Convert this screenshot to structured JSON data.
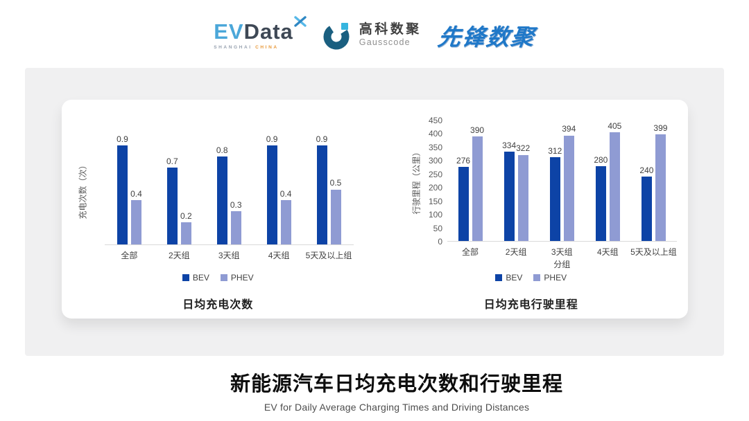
{
  "header": {
    "evdata": {
      "ev": "EV",
      "data": "Data",
      "sub_left": "SHANGHAI",
      "sub_right": "CHINA"
    },
    "gausscode": {
      "cn": "高科数聚",
      "en": "Gausscode"
    },
    "xianfeng": "先锋数聚"
  },
  "icons": {
    "evdata_mark": "x-sparkle",
    "gausscode_mark": "g-ring-with-square"
  },
  "chart_data": [
    {
      "type": "bar",
      "title": "日均充电次数",
      "ylabel": "充电次数（次）",
      "xlabel": "",
      "categories": [
        "全部",
        "2天组",
        "3天组",
        "4天组",
        "5天及以上组"
      ],
      "series": [
        {
          "name": "BEV",
          "color": "#0d43a6",
          "values": [
            0.9,
            0.7,
            0.8,
            0.9,
            0.9
          ]
        },
        {
          "name": "PHEV",
          "color": "#8f9bd3",
          "values": [
            0.4,
            0.2,
            0.3,
            0.4,
            0.5
          ]
        }
      ],
      "ylim": [
        0,
        1.0
      ],
      "y_ticks": [],
      "grid": false,
      "value_labels": true,
      "legend_position": "bottom"
    },
    {
      "type": "bar",
      "title": "日均充电行驶里程",
      "ylabel": "行驶里程（公里）",
      "xlabel": "分组",
      "categories": [
        "全部",
        "2天组",
        "3天组",
        "4天组",
        "5天及以上组"
      ],
      "series": [
        {
          "name": "BEV",
          "color": "#0d43a6",
          "values": [
            276,
            334,
            312,
            280,
            240
          ]
        },
        {
          "name": "PHEV",
          "color": "#8f9bd3",
          "values": [
            390,
            322,
            394,
            405,
            399
          ]
        }
      ],
      "ylim": [
        0,
        450
      ],
      "y_ticks": [
        0,
        50,
        100,
        150,
        200,
        250,
        300,
        350,
        400,
        450
      ],
      "grid": false,
      "value_labels": true,
      "legend_position": "bottom"
    }
  ],
  "footer": {
    "title": "新能源汽车日均充电次数和行驶里程",
    "subtitle": "EV for Daily Average Charging Times and Driving Distances"
  },
  "colors": {
    "bev": "#0d43a6",
    "phev": "#8f9bd3",
    "panel_bg": "#f0f0f1",
    "card_bg": "#ffffff",
    "evdata_blue": "#4BA7D9",
    "evdata_dark": "#3E4855",
    "gauss_dark": "#1A5F80",
    "gauss_cyan": "#35B5DF",
    "xianfeng_blue": "#1F78C8",
    "china_orange": "#E89A3C"
  }
}
